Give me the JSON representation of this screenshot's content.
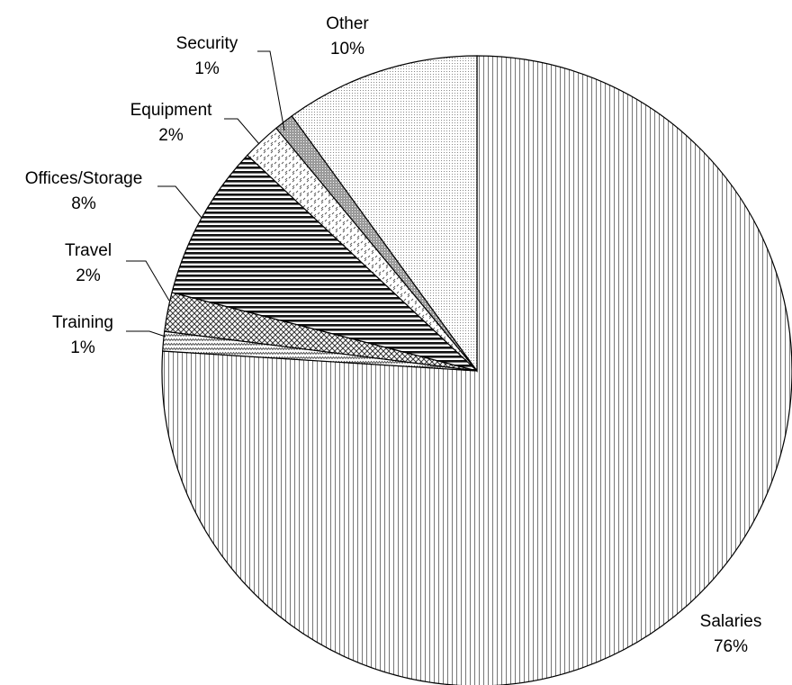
{
  "chart_data": {
    "type": "pie",
    "start_angle_deg": 0,
    "direction": "clockwise",
    "slices": [
      {
        "label": "Salaries",
        "percent_label": "76%",
        "value": 76,
        "pattern": "vertical-lines"
      },
      {
        "label": "Training",
        "percent_label": "1%",
        "value": 1,
        "pattern": "zigzag"
      },
      {
        "label": "Travel",
        "percent_label": "2%",
        "value": 2,
        "pattern": "diamond-crosshatch"
      },
      {
        "label": "Offices/Storage",
        "percent_label": "8%",
        "value": 8,
        "pattern": "horizontal-lines"
      },
      {
        "label": "Equipment",
        "percent_label": "2%",
        "value": 2,
        "pattern": "dashed-diagonal"
      },
      {
        "label": "Security",
        "percent_label": "1%",
        "value": 1,
        "pattern": "dark-dots"
      },
      {
        "label": "Other",
        "percent_label": "10%",
        "value": 10,
        "pattern": "fine-dots"
      }
    ],
    "colors": {
      "stroke": "#000000",
      "dark_fill": "#9a9a9a",
      "background": "#ffffff"
    }
  }
}
